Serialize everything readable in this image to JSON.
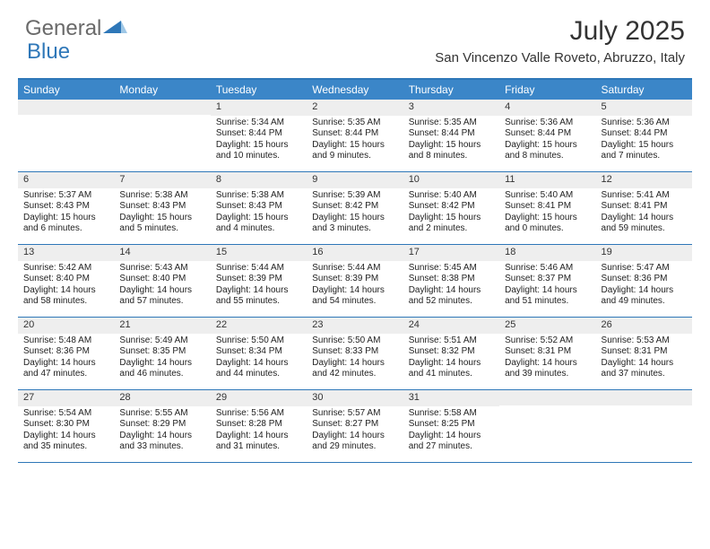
{
  "logo": {
    "text1": "General",
    "text2": "Blue"
  },
  "title": "July 2025",
  "location": "San Vincenzo Valle Roveto, Abruzzo, Italy",
  "colors": {
    "header_bg": "#3b86c8",
    "week_border": "#2e77b8",
    "daynum_bg": "#eeeeee",
    "text": "#222222"
  },
  "day_headers": [
    "Sunday",
    "Monday",
    "Tuesday",
    "Wednesday",
    "Thursday",
    "Friday",
    "Saturday"
  ],
  "weeks": [
    [
      null,
      null,
      {
        "n": "1",
        "sr": "5:34 AM",
        "ss": "8:44 PM",
        "dl": "15 hours and 10 minutes."
      },
      {
        "n": "2",
        "sr": "5:35 AM",
        "ss": "8:44 PM",
        "dl": "15 hours and 9 minutes."
      },
      {
        "n": "3",
        "sr": "5:35 AM",
        "ss": "8:44 PM",
        "dl": "15 hours and 8 minutes."
      },
      {
        "n": "4",
        "sr": "5:36 AM",
        "ss": "8:44 PM",
        "dl": "15 hours and 8 minutes."
      },
      {
        "n": "5",
        "sr": "5:36 AM",
        "ss": "8:44 PM",
        "dl": "15 hours and 7 minutes."
      }
    ],
    [
      {
        "n": "6",
        "sr": "5:37 AM",
        "ss": "8:43 PM",
        "dl": "15 hours and 6 minutes."
      },
      {
        "n": "7",
        "sr": "5:38 AM",
        "ss": "8:43 PM",
        "dl": "15 hours and 5 minutes."
      },
      {
        "n": "8",
        "sr": "5:38 AM",
        "ss": "8:43 PM",
        "dl": "15 hours and 4 minutes."
      },
      {
        "n": "9",
        "sr": "5:39 AM",
        "ss": "8:42 PM",
        "dl": "15 hours and 3 minutes."
      },
      {
        "n": "10",
        "sr": "5:40 AM",
        "ss": "8:42 PM",
        "dl": "15 hours and 2 minutes."
      },
      {
        "n": "11",
        "sr": "5:40 AM",
        "ss": "8:41 PM",
        "dl": "15 hours and 0 minutes."
      },
      {
        "n": "12",
        "sr": "5:41 AM",
        "ss": "8:41 PM",
        "dl": "14 hours and 59 minutes."
      }
    ],
    [
      {
        "n": "13",
        "sr": "5:42 AM",
        "ss": "8:40 PM",
        "dl": "14 hours and 58 minutes."
      },
      {
        "n": "14",
        "sr": "5:43 AM",
        "ss": "8:40 PM",
        "dl": "14 hours and 57 minutes."
      },
      {
        "n": "15",
        "sr": "5:44 AM",
        "ss": "8:39 PM",
        "dl": "14 hours and 55 minutes."
      },
      {
        "n": "16",
        "sr": "5:44 AM",
        "ss": "8:39 PM",
        "dl": "14 hours and 54 minutes."
      },
      {
        "n": "17",
        "sr": "5:45 AM",
        "ss": "8:38 PM",
        "dl": "14 hours and 52 minutes."
      },
      {
        "n": "18",
        "sr": "5:46 AM",
        "ss": "8:37 PM",
        "dl": "14 hours and 51 minutes."
      },
      {
        "n": "19",
        "sr": "5:47 AM",
        "ss": "8:36 PM",
        "dl": "14 hours and 49 minutes."
      }
    ],
    [
      {
        "n": "20",
        "sr": "5:48 AM",
        "ss": "8:36 PM",
        "dl": "14 hours and 47 minutes."
      },
      {
        "n": "21",
        "sr": "5:49 AM",
        "ss": "8:35 PM",
        "dl": "14 hours and 46 minutes."
      },
      {
        "n": "22",
        "sr": "5:50 AM",
        "ss": "8:34 PM",
        "dl": "14 hours and 44 minutes."
      },
      {
        "n": "23",
        "sr": "5:50 AM",
        "ss": "8:33 PM",
        "dl": "14 hours and 42 minutes."
      },
      {
        "n": "24",
        "sr": "5:51 AM",
        "ss": "8:32 PM",
        "dl": "14 hours and 41 minutes."
      },
      {
        "n": "25",
        "sr": "5:52 AM",
        "ss": "8:31 PM",
        "dl": "14 hours and 39 minutes."
      },
      {
        "n": "26",
        "sr": "5:53 AM",
        "ss": "8:31 PM",
        "dl": "14 hours and 37 minutes."
      }
    ],
    [
      {
        "n": "27",
        "sr": "5:54 AM",
        "ss": "8:30 PM",
        "dl": "14 hours and 35 minutes."
      },
      {
        "n": "28",
        "sr": "5:55 AM",
        "ss": "8:29 PM",
        "dl": "14 hours and 33 minutes."
      },
      {
        "n": "29",
        "sr": "5:56 AM",
        "ss": "8:28 PM",
        "dl": "14 hours and 31 minutes."
      },
      {
        "n": "30",
        "sr": "5:57 AM",
        "ss": "8:27 PM",
        "dl": "14 hours and 29 minutes."
      },
      {
        "n": "31",
        "sr": "5:58 AM",
        "ss": "8:25 PM",
        "dl": "14 hours and 27 minutes."
      },
      null,
      null
    ]
  ],
  "labels": {
    "sunrise": "Sunrise: ",
    "sunset": "Sunset: ",
    "daylight": "Daylight: "
  }
}
